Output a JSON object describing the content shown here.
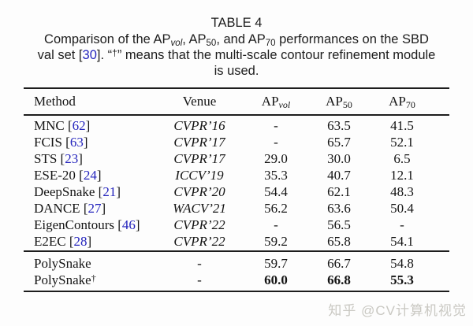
{
  "title": "TABLE 4",
  "caption": {
    "l1": {
      "a": "Comparison of the AP",
      "sub_vol": "vol",
      "b": ", AP",
      "sub_50": "50",
      "c": ", and AP",
      "sub_70": "70",
      "d": " performances on the SBD"
    },
    "l2": {
      "a": "val set ",
      "ref_open": "[",
      "ref": "30",
      "ref_close": "]",
      "b": ". “",
      "dagger": "†",
      "c": "” means that the multi-scale contour refinement module"
    },
    "l3": "is used."
  },
  "table": {
    "columns": {
      "method": "Method",
      "venue": "Venue",
      "ap": [
        {
          "base": "AP",
          "sub": "vol"
        },
        {
          "base": "AP",
          "sub": "50"
        },
        {
          "base": "AP",
          "sub": "70"
        }
      ]
    },
    "ref_open": "[",
    "ref_close": "]",
    "groups": [
      {
        "rows": [
          {
            "method": "MNC",
            "ref": "62",
            "dagger": null,
            "venue": "CVPR’16",
            "venue_italic": true,
            "values": [
              "-",
              "63.5",
              "41.5"
            ],
            "bold": false
          },
          {
            "method": "FCIS",
            "ref": "63",
            "dagger": null,
            "venue": "CVPR’17",
            "venue_italic": true,
            "values": [
              "-",
              "65.7",
              "52.1"
            ],
            "bold": false
          },
          {
            "method": "STS",
            "ref": "23",
            "dagger": null,
            "venue": "CVPR’17",
            "venue_italic": true,
            "values": [
              "29.0",
              "30.0",
              "6.5"
            ],
            "bold": false
          },
          {
            "method": "ESE-20",
            "ref": "24",
            "dagger": null,
            "venue": "ICCV’19",
            "venue_italic": true,
            "values": [
              "35.3",
              "40.7",
              "12.1"
            ],
            "bold": false
          },
          {
            "method": "DeepSnake",
            "ref": "21",
            "dagger": null,
            "venue": "CVPR’20",
            "venue_italic": true,
            "values": [
              "54.4",
              "62.1",
              "48.3"
            ],
            "bold": false
          },
          {
            "method": "DANCE",
            "ref": "27",
            "dagger": null,
            "venue": "WACV’21",
            "venue_italic": true,
            "values": [
              "56.2",
              "63.6",
              "50.4"
            ],
            "bold": false
          },
          {
            "method": "EigenContours",
            "ref": "46",
            "dagger": null,
            "venue": "CVPR’22",
            "venue_italic": true,
            "values": [
              "-",
              "56.5",
              "-"
            ],
            "bold": false
          },
          {
            "method": "E2EC",
            "ref": "28",
            "dagger": null,
            "venue": "CVPR’22",
            "venue_italic": true,
            "values": [
              "59.2",
              "65.8",
              "54.1"
            ],
            "bold": false
          }
        ]
      },
      {
        "rows": [
          {
            "method": "PolySnake",
            "ref": null,
            "dagger": null,
            "venue": "-",
            "venue_italic": false,
            "values": [
              "59.7",
              "66.7",
              "54.8"
            ],
            "bold": false
          },
          {
            "method": "PolySnake",
            "ref": null,
            "dagger": "†",
            "venue": "-",
            "venue_italic": false,
            "values": [
              "60.0",
              "66.8",
              "55.3"
            ],
            "bold": true
          }
        ]
      }
    ]
  },
  "watermark": "知乎 @CV计算机视觉",
  "colors": {
    "citation_blue": "#2424bd",
    "watermark_gray": "#c9c8c2",
    "rule_black": "#1d1d1d"
  }
}
